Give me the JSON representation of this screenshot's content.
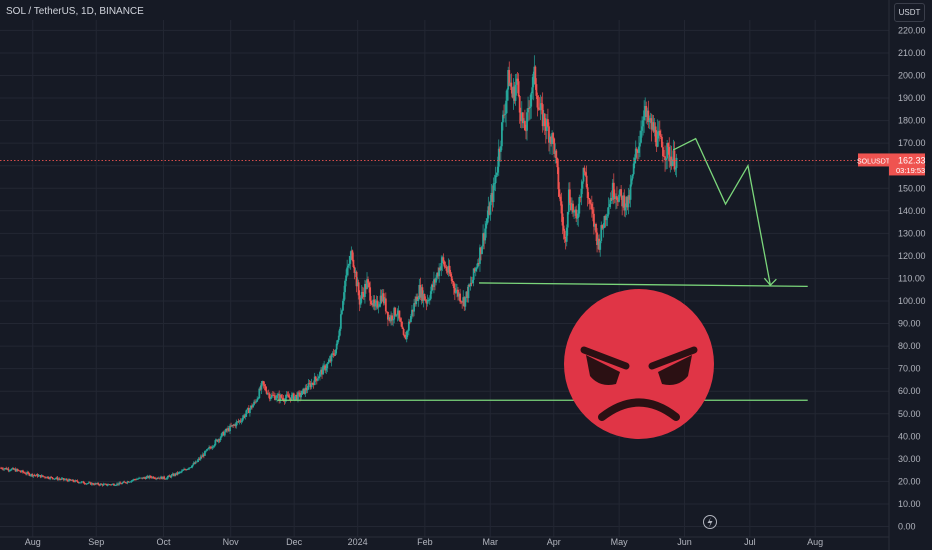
{
  "header": {
    "title": "SOL / TetherUS, 1D, BINANCE"
  },
  "currency_button": "USDT",
  "price_tag": {
    "symbol": "SOLUSDT",
    "price": "162.33",
    "countdown": "03:19:53"
  },
  "colors": {
    "up": "#26a69a",
    "down": "#ef5350",
    "drawing": "#7bd67b",
    "emoji": "#e03546",
    "background": "#161a25"
  },
  "icons": [
    "lightning-icon",
    "angry-face-icon"
  ],
  "chart_data": {
    "type": "candlestick",
    "title": "SOL / TetherUS, 1D, BINANCE",
    "y_ticks": [
      0,
      10,
      20,
      30,
      40,
      50,
      60,
      70,
      80,
      90,
      100,
      110,
      120,
      130,
      140,
      150,
      160,
      170,
      180,
      190,
      200,
      210,
      220
    ],
    "ylim": [
      0,
      225
    ],
    "x_ticks": [
      "Aug",
      "Sep",
      "Oct",
      "Nov",
      "Dec",
      "2024",
      "Feb",
      "Mar",
      "Apr",
      "May",
      "Jun",
      "Jul",
      "Aug"
    ],
    "grid": true,
    "current_price": 162.33,
    "close_path": [
      [
        0,
        26
      ],
      [
        4,
        25
      ],
      [
        8,
        23
      ],
      [
        12,
        22
      ],
      [
        16,
        21
      ],
      [
        20,
        20
      ],
      [
        24,
        19
      ],
      [
        28,
        18.5
      ],
      [
        32,
        19
      ],
      [
        36,
        21
      ],
      [
        40,
        22
      ],
      [
        44,
        21.5
      ],
      [
        48,
        24
      ],
      [
        52,
        28
      ],
      [
        56,
        35
      ],
      [
        60,
        42
      ],
      [
        64,
        47
      ],
      [
        68,
        55
      ],
      [
        70,
        63
      ],
      [
        72,
        58
      ],
      [
        76,
        57
      ],
      [
        80,
        58
      ],
      [
        84,
        65
      ],
      [
        88,
        73
      ],
      [
        90,
        80
      ],
      [
        92,
        108
      ],
      [
        94,
        122
      ],
      [
        96,
        100
      ],
      [
        98,
        108
      ],
      [
        100,
        96
      ],
      [
        102,
        103
      ],
      [
        104,
        92
      ],
      [
        106,
        96
      ],
      [
        108,
        82
      ],
      [
        110,
        95
      ],
      [
        112,
        105
      ],
      [
        114,
        100
      ],
      [
        116,
        108
      ],
      [
        118,
        118
      ],
      [
        120,
        112
      ],
      [
        122,
        104
      ],
      [
        124,
        100
      ],
      [
        126,
        108
      ],
      [
        128,
        120
      ],
      [
        130,
        135
      ],
      [
        132,
        150
      ],
      [
        134,
        175
      ],
      [
        136,
        200
      ],
      [
        137,
        190
      ],
      [
        138,
        198
      ],
      [
        140,
        175
      ],
      [
        141,
        180
      ],
      [
        142,
        195
      ],
      [
        143,
        200
      ],
      [
        144,
        185
      ],
      [
        146,
        178
      ],
      [
        148,
        170
      ],
      [
        150,
        140
      ],
      [
        151,
        125
      ],
      [
        152,
        148
      ],
      [
        154,
        135
      ],
      [
        156,
        160
      ],
      [
        157,
        148
      ],
      [
        158,
        140
      ],
      [
        160,
        125
      ],
      [
        162,
        140
      ],
      [
        164,
        150
      ],
      [
        166,
        145
      ],
      [
        168,
        143
      ],
      [
        170,
        165
      ],
      [
        171,
        172
      ],
      [
        172,
        185
      ],
      [
        173,
        180
      ],
      [
        175,
        175
      ],
      [
        177,
        168
      ],
      [
        179,
        165
      ],
      [
        180,
        163
      ],
      [
        181,
        162.3
      ]
    ],
    "projection": {
      "x": [
        180,
        186,
        194,
        200,
        206
      ],
      "y": [
        167,
        172,
        143,
        160,
        107
      ]
    },
    "horizontal_lines": [
      {
        "x": [
          128,
          216
        ],
        "y": [
          108,
          106.5
        ]
      },
      {
        "x": [
          74,
          216
        ],
        "y": [
          56,
          56
        ]
      }
    ],
    "x_tick_pos": [
      8.5,
      25.5,
      43.5,
      61.5,
      78.5,
      95.5,
      113.5,
      131,
      148,
      165.5,
      183,
      200.5,
      218
    ],
    "x_domain": [
      0,
      230
    ]
  }
}
